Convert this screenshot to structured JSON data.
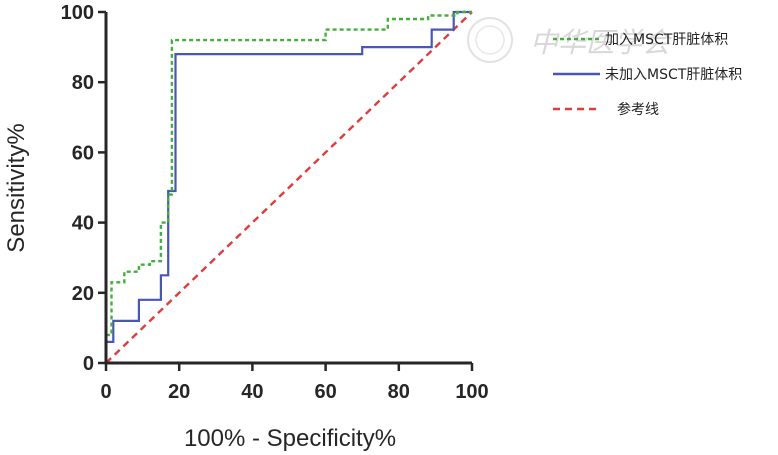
{
  "chart_data": {
    "type": "line",
    "xlabel": "100% - Specificity%",
    "ylabel": "Sensitivity%",
    "xlim": [
      0,
      100
    ],
    "ylim": [
      0,
      100
    ],
    "xticks": [
      0,
      20,
      40,
      60,
      80,
      100
    ],
    "yticks": [
      0,
      20,
      40,
      60,
      80,
      100
    ],
    "grid": false,
    "legend_position": "right",
    "series": [
      {
        "name": "加入MSCT肝脏体积",
        "color": "#44b03a",
        "style": "dotted",
        "points": [
          [
            0,
            0
          ],
          [
            0,
            8
          ],
          [
            1.5,
            8
          ],
          [
            1.5,
            23
          ],
          [
            5,
            23
          ],
          [
            5,
            26
          ],
          [
            9,
            26
          ],
          [
            9,
            28
          ],
          [
            12,
            28
          ],
          [
            12,
            29
          ],
          [
            15,
            29
          ],
          [
            15,
            40
          ],
          [
            17,
            40
          ],
          [
            17,
            48
          ],
          [
            18,
            48
          ],
          [
            18,
            92
          ],
          [
            24,
            92
          ],
          [
            60,
            92
          ],
          [
            60,
            95
          ],
          [
            77,
            95
          ],
          [
            77,
            98
          ],
          [
            88,
            98
          ],
          [
            88,
            99
          ],
          [
            96,
            99
          ],
          [
            96,
            100
          ],
          [
            100,
            100
          ]
        ]
      },
      {
        "name": "未加入MSCT肝脏体积",
        "color": "#4a56b4",
        "style": "solid",
        "points": [
          [
            0,
            0
          ],
          [
            0,
            6
          ],
          [
            2,
            6
          ],
          [
            2,
            12
          ],
          [
            9,
            12
          ],
          [
            9,
            18
          ],
          [
            15,
            18
          ],
          [
            15,
            25
          ],
          [
            17,
            25
          ],
          [
            17,
            49
          ],
          [
            19,
            49
          ],
          [
            19,
            88
          ],
          [
            70,
            88
          ],
          [
            70,
            90
          ],
          [
            89,
            90
          ],
          [
            89,
            95
          ],
          [
            95,
            95
          ],
          [
            95,
            100
          ],
          [
            100,
            100
          ]
        ]
      },
      {
        "name": "参考线",
        "color": "#e03c3c",
        "style": "dashed",
        "points": [
          [
            0,
            0
          ],
          [
            100,
            100
          ]
        ]
      }
    ]
  },
  "watermark": "中华医学会"
}
